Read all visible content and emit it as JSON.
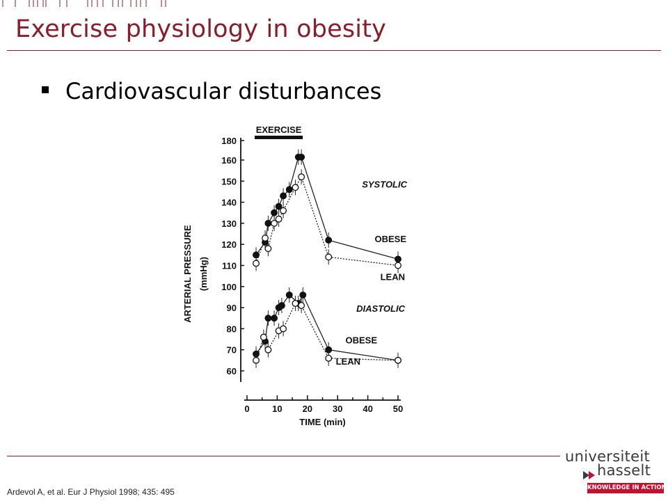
{
  "slide": {
    "title": "Exercise physiology in obesity",
    "bullet": "Cardiovascular disturbances",
    "citation": "Ardevol A, et al. Eur J Physiol 1998; 435: 495"
  },
  "logo": {
    "line1": "universiteit",
    "line2": "hasselt",
    "tagline": "KNOWLEDGE IN ACTION",
    "accent_color": "#c8102e"
  },
  "colors": {
    "title": "#8b1c2a",
    "rule": "#8b1c2a"
  },
  "chart_data": {
    "type": "line",
    "exercise_label": "EXERCISE",
    "exercise_period": [
      3,
      18
    ],
    "xlabel": "TIME (min)",
    "ylabel": "ARTERIAL PRESSURE",
    "ylabel_unit": "(mmHg)",
    "x_ticks": [
      0,
      10,
      20,
      30,
      40,
      50
    ],
    "xlim": [
      0,
      50
    ],
    "y_ticks": [
      60,
      70,
      80,
      90,
      100,
      110,
      120,
      130,
      140,
      150,
      160,
      180
    ],
    "ylim": [
      60,
      180
    ],
    "panels": [
      {
        "label": "SYSTOLIC",
        "series": [
          {
            "name": "OBESE",
            "marker": "filled",
            "line": "solid",
            "x": [
              3,
              6,
              7,
              9,
              10.5,
              12,
              14,
              17,
              18,
              27,
              50
            ],
            "y": [
              115,
              121,
              130,
              135,
              138,
              143,
              146,
              163,
              163,
              122,
              113
            ]
          },
          {
            "name": "LEAN",
            "marker": "open",
            "line": "dashed",
            "x": [
              3,
              6,
              7,
              9,
              10.5,
              12,
              16,
              18,
              27,
              50
            ],
            "y": [
              111,
              123,
              118,
              130,
              132,
              136,
              147,
              152,
              114,
              110
            ]
          }
        ]
      },
      {
        "label": "DIASTOLIC",
        "series": [
          {
            "name": "OBESE",
            "marker": "filled",
            "line": "solid",
            "x": [
              3,
              6,
              7,
              9,
              10.5,
              11.5,
              14,
              17,
              18.5,
              27,
              50
            ],
            "y": [
              68,
              74,
              85,
              85,
              90,
              91,
              96,
              92,
              96,
              70,
              65
            ]
          },
          {
            "name": "LEAN",
            "marker": "open",
            "line": "dashed",
            "x": [
              3,
              5.5,
              7,
              10.5,
              12,
              16,
              18,
              27,
              50
            ],
            "y": [
              65,
              76,
              70,
              79,
              80,
              92,
              91,
              66,
              65
            ]
          }
        ]
      }
    ]
  }
}
